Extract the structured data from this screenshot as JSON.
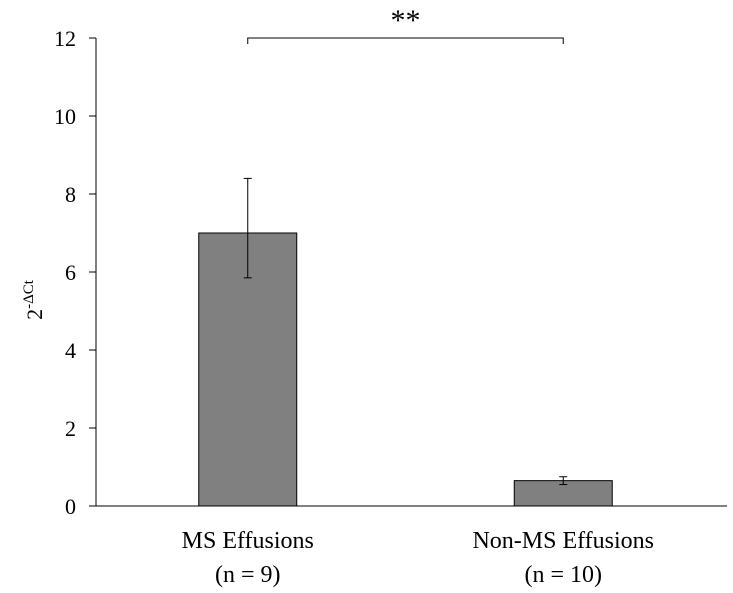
{
  "chart_data": {
    "type": "bar",
    "categories": [
      {
        "line1": "MS Effusions",
        "line2": "(n = 9)"
      },
      {
        "line1": "Non-MS Effusions",
        "line2": "(n = 10)"
      }
    ],
    "values": [
      7.0,
      0.65
    ],
    "error_low": [
      5.85,
      0.55
    ],
    "error_high": [
      8.4,
      0.75
    ],
    "ylabel_base": "2",
    "ylabel_sup": "-ΔCt",
    "ylim": [
      0,
      12
    ],
    "yticks": [
      0,
      2,
      4,
      6,
      8,
      10,
      12
    ],
    "significance": {
      "label": "**",
      "between": [
        0,
        1
      ]
    },
    "bar_color": "#808080",
    "bar_edge_color": "#000000",
    "grid": false,
    "legend": "none"
  }
}
